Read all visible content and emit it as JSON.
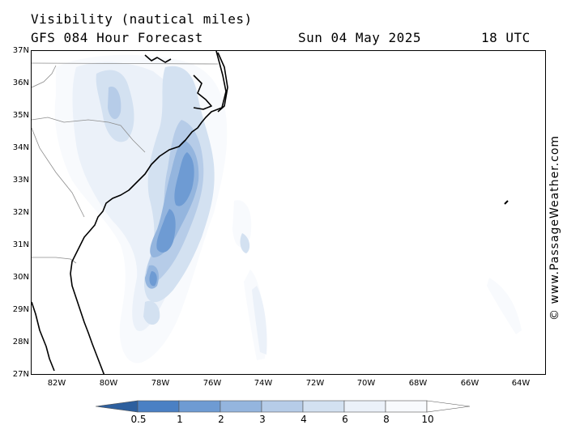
{
  "header": {
    "title": "Visibility (nautical miles)",
    "model_line": "GFS 084 Hour Forecast",
    "date": "Sun 04 May 2025",
    "time": "18 UTC"
  },
  "map": {
    "latitude_labels": [
      "37N",
      "36N",
      "35N",
      "34N",
      "33N",
      "32N",
      "31N",
      "30N",
      "29N",
      "28N",
      "27N"
    ],
    "longitude_labels": [
      "82W",
      "80W",
      "78W",
      "76W",
      "74W",
      "72W",
      "70W",
      "68W",
      "66W",
      "64W"
    ],
    "lat_range": [
      27,
      37
    ],
    "lon_range": [
      -83,
      -63.5
    ],
    "visibility_colors": {
      "below_0.5": "#2d5f9e",
      "0.5-1": "#4a80c4",
      "1-2": "#6e9bd3",
      "2-3": "#94b5de",
      "3-4": "#b6cce8",
      "4-6": "#d3e1f1",
      "6-8": "#ebf1f9",
      "8-10": "#f8fafd"
    }
  },
  "legend": {
    "labels": [
      "0.5",
      "1",
      "2",
      "3",
      "4",
      "6",
      "8",
      "10"
    ],
    "colors": [
      "#2d5f9e",
      "#4a80c4",
      "#6e9bd3",
      "#94b5de",
      "#b6cce8",
      "#d3e1f1",
      "#ebf1f9",
      "#f8fafd",
      "#ffffff"
    ]
  },
  "credit": "© www.PassageWeather.com"
}
